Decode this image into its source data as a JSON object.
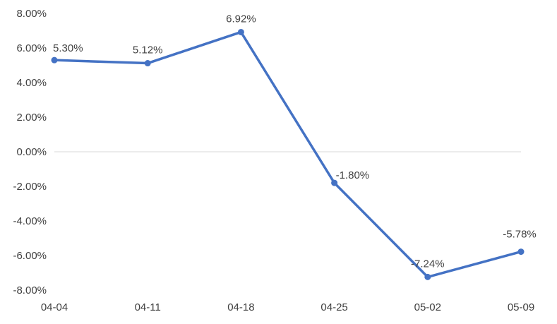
{
  "chart_data": {
    "type": "line",
    "title": "",
    "xlabel": "",
    "ylabel": "",
    "categories": [
      "04-04",
      "04-11",
      "04-18",
      "04-25",
      "05-02",
      "05-09"
    ],
    "series": [
      {
        "values": [
          5.3,
          5.12,
          6.92,
          -1.8,
          -7.24,
          -5.78
        ],
        "labels": [
          "5.30%",
          "5.12%",
          "6.92%",
          "-1.80%",
          "-7.24%",
          "-5.78%"
        ],
        "color": "#4472C4"
      }
    ],
    "ylim": [
      -8,
      8
    ],
    "yticks": [
      8,
      6,
      4,
      2,
      0,
      -2,
      -4,
      -6,
      -8
    ],
    "ytick_labels": [
      "8.00%",
      "6.00%",
      "4.00%",
      "2.00%",
      "0.00%",
      "-2.00%",
      "-4.00%",
      "-6.00%",
      "-8.00%"
    ],
    "grid": false,
    "zero_line": true,
    "zero_line_color": "#D9D9D9",
    "legend": "none"
  }
}
